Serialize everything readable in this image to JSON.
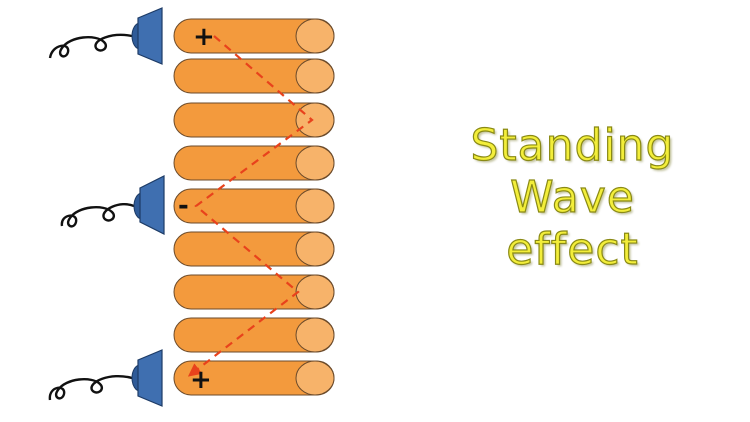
{
  "title": {
    "line1": "Standing",
    "line2": "Wave",
    "line3": "effect"
  },
  "signs": {
    "top": "+",
    "middle": "-",
    "bottom": "+"
  },
  "colors": {
    "cylinder_body": "#f39a3d",
    "cylinder_end": "#f7b36a",
    "clamp": "#3f6fb0",
    "dashed_path": "#e8421c",
    "title_text": "#f3ee3a"
  }
}
